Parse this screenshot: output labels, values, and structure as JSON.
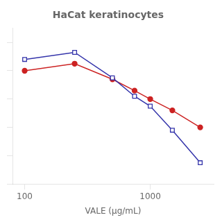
{
  "chart_data": {
    "type": "line",
    "title": "HaCat keratinocytes",
    "xlabel": "VALE (μg/mL)",
    "x": [
      100,
      250,
      500,
      750,
      1000,
      1500,
      2500
    ],
    "series": [
      {
        "color": "#3333aa",
        "marker": "open_square",
        "values": [
          88,
          93,
          75,
          62,
          55,
          38,
          15
        ]
      },
      {
        "color": "#cc2222",
        "marker": "circle",
        "values": [
          80,
          85,
          74,
          66,
          60,
          52,
          40
        ]
      }
    ],
    "log": "x",
    "xlim": [
      80,
      3200
    ],
    "xticks": [
      100,
      1000
    ],
    "ylim": [
      0,
      110
    ],
    "yticks": [
      0,
      20,
      40,
      60,
      80,
      100
    ],
    "grid": false,
    "tick_labels": "x"
  }
}
